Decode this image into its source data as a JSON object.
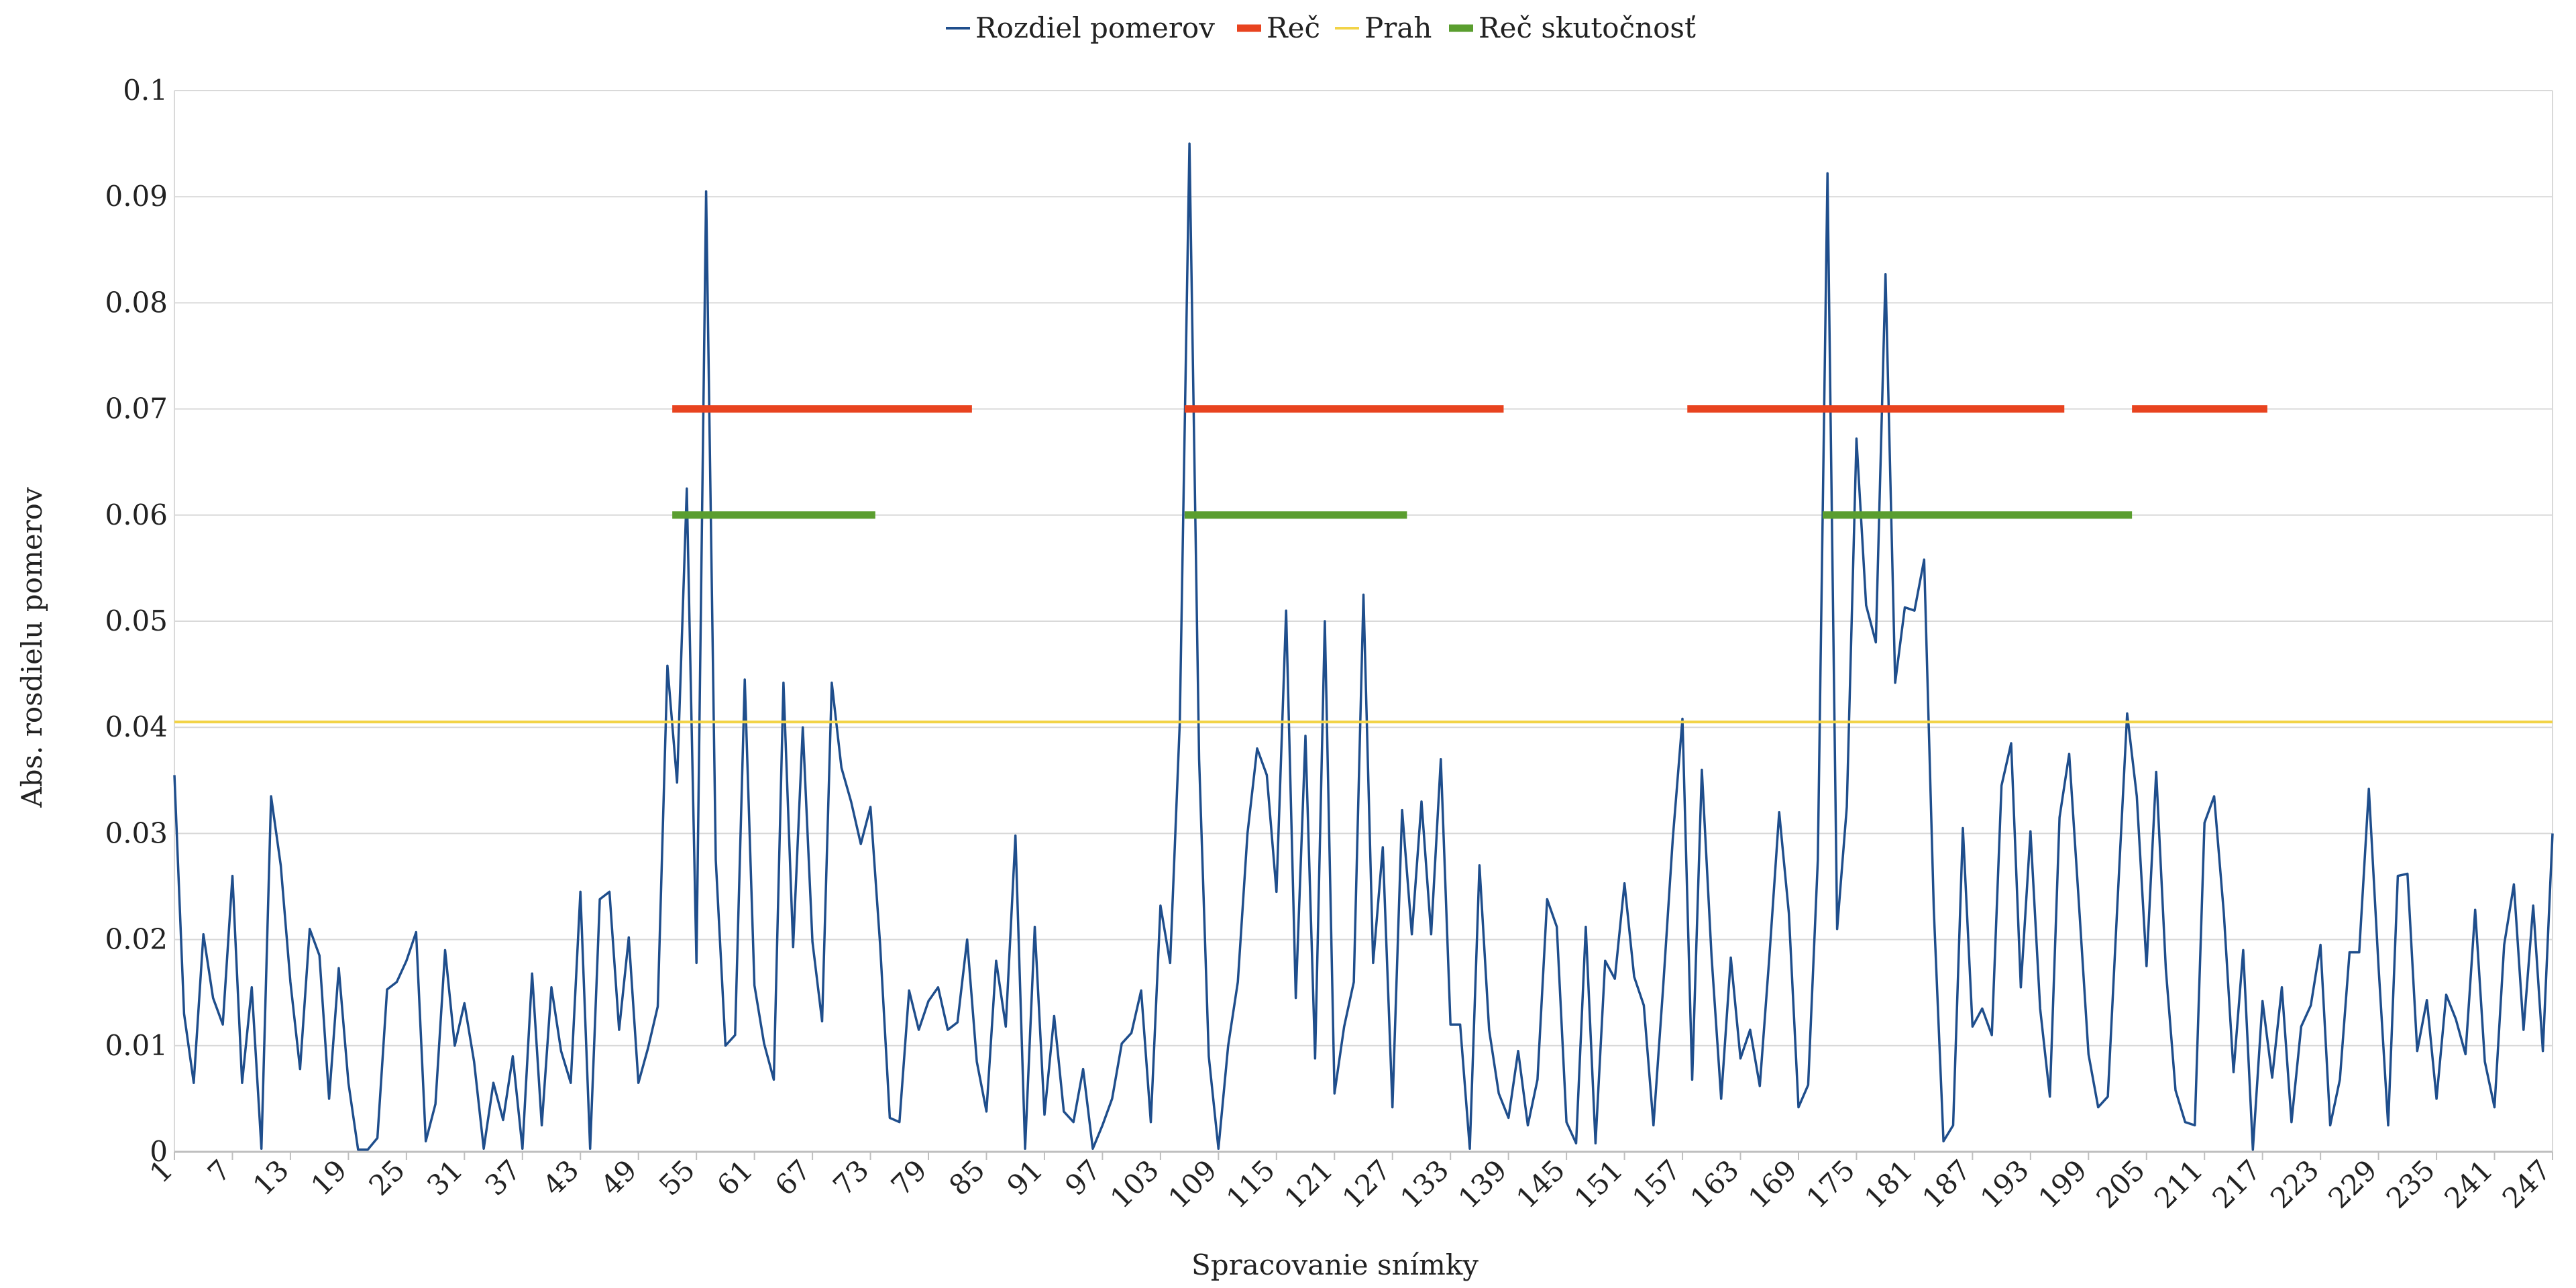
{
  "chart_data": {
    "type": "line",
    "xlabel": "Spracovanie snímky",
    "ylabel": "Abs. rosdielu pomerov",
    "ylim": [
      0,
      0.1
    ],
    "xlim": [
      1,
      247
    ],
    "yticks": [
      0,
      0.01,
      0.02,
      0.03,
      0.04,
      0.05,
      0.06,
      0.07,
      0.08,
      0.09,
      0.1
    ],
    "ytick_labels": [
      "0",
      "0.01",
      "0.02",
      "0.03",
      "0.04",
      "0.05",
      "0.06",
      "0.07",
      "0.08",
      "0.09",
      "0.1"
    ],
    "xticks": [
      1,
      7,
      13,
      19,
      25,
      31,
      37,
      43,
      49,
      55,
      61,
      67,
      73,
      79,
      85,
      91,
      97,
      103,
      109,
      115,
      121,
      127,
      133,
      139,
      145,
      151,
      157,
      163,
      169,
      175,
      181,
      187,
      193,
      199,
      205,
      211,
      217,
      223,
      229,
      235,
      241,
      247
    ],
    "grid": true,
    "legend": "top-center",
    "series": [
      {
        "name": "Rozdiel pomerov",
        "color": "#1f4e8c",
        "values": [
          0.0355,
          0.013,
          0.0065,
          0.0205,
          0.0145,
          0.012,
          0.026,
          0.0065,
          0.0155,
          0.0003,
          0.0335,
          0.027,
          0.016,
          0.0078,
          0.021,
          0.0185,
          0.005,
          0.0173,
          0.0065,
          0.0002,
          0.0002,
          0.0013,
          0.0153,
          0.016,
          0.018,
          0.0207,
          0.001,
          0.0045,
          0.019,
          0.01,
          0.014,
          0.0085,
          0.0003,
          0.0065,
          0.003,
          0.009,
          0.0003,
          0.0168,
          0.0025,
          0.0155,
          0.0095,
          0.0065,
          0.0245,
          0.0003,
          0.0238,
          0.0245,
          0.0115,
          0.0202,
          0.0065,
          0.0098,
          0.0137,
          0.0458,
          0.0348,
          0.0625,
          0.0178,
          0.0905,
          0.0275,
          0.01,
          0.011,
          0.0445,
          0.0157,
          0.0102,
          0.0068,
          0.0442,
          0.0193,
          0.04,
          0.0198,
          0.0123,
          0.0442,
          0.0362,
          0.033,
          0.029,
          0.0325,
          0.0195,
          0.0032,
          0.0028,
          0.0152,
          0.0115,
          0.0142,
          0.0155,
          0.0115,
          0.0122,
          0.02,
          0.0085,
          0.0038,
          0.018,
          0.0118,
          0.0298,
          0.0003,
          0.0212,
          0.0035,
          0.0128,
          0.0038,
          0.0028,
          0.0078,
          0.0003,
          0.0025,
          0.005,
          0.0102,
          0.0112,
          0.0152,
          0.0028,
          0.0232,
          0.0178,
          0.0405,
          0.095,
          0.037,
          0.009,
          0.0003,
          0.01,
          0.016,
          0.03,
          0.038,
          0.0355,
          0.0245,
          0.051,
          0.0145,
          0.0392,
          0.0088,
          0.05,
          0.0055,
          0.0118,
          0.016,
          0.0525,
          0.0178,
          0.0287,
          0.0042,
          0.0322,
          0.0205,
          0.033,
          0.0205,
          0.037,
          0.012,
          0.012,
          0.0003,
          0.027,
          0.0115,
          0.0055,
          0.0032,
          0.0095,
          0.0025,
          0.0068,
          0.0238,
          0.0212,
          0.0028,
          0.0008,
          0.0212,
          0.0008,
          0.018,
          0.0163,
          0.0253,
          0.0165,
          0.0138,
          0.0025,
          0.0155,
          0.0295,
          0.0408,
          0.0068,
          0.036,
          0.0185,
          0.005,
          0.0183,
          0.0088,
          0.0115,
          0.0062,
          0.0185,
          0.032,
          0.0225,
          0.0042,
          0.0063,
          0.0275,
          0.0922,
          0.021,
          0.0325,
          0.0672,
          0.0515,
          0.048,
          0.0827,
          0.0442,
          0.0513,
          0.051,
          0.0558,
          0.0228,
          0.001,
          0.0025,
          0.0305,
          0.0118,
          0.0135,
          0.011,
          0.0345,
          0.0385,
          0.0155,
          0.0302,
          0.0135,
          0.0052,
          0.0315,
          0.0375,
          0.0235,
          0.0092,
          0.0042,
          0.0052,
          0.0235,
          0.0413,
          0.0335,
          0.0175,
          0.0358,
          0.0172,
          0.0058,
          0.0028,
          0.0025,
          0.031,
          0.0335,
          0.0225,
          0.0075,
          0.019,
          0.0002,
          0.0142,
          0.007,
          0.0155,
          0.0028,
          0.0118,
          0.0138,
          0.0195,
          0.0025,
          0.0068,
          0.0188,
          0.0188,
          0.0342,
          0.0175,
          0.0025,
          0.026,
          0.0262,
          0.0095,
          0.0143,
          0.005,
          0.0148,
          0.0125,
          0.0092,
          0.0228,
          0.0085,
          0.0042,
          0.0195,
          0.0252,
          0.0115,
          0.0232,
          0.0095,
          0.03
        ]
      },
      {
        "name": "Reč",
        "color": "#e8431f",
        "y": 0.07,
        "segments": [
          [
            52.5,
            83.5
          ],
          [
            105.5,
            138.5
          ],
          [
            157.5,
            196.5
          ],
          [
            203.5,
            217.5
          ]
        ]
      },
      {
        "name": "Prah",
        "color": "#f2d347",
        "y": 0.0405
      },
      {
        "name": "Reč skutočnosť",
        "color": "#5a9e2f",
        "y": 0.06,
        "segments": [
          [
            52.5,
            73.5
          ],
          [
            105.5,
            128.5
          ],
          [
            171.5,
            203.5
          ]
        ]
      }
    ]
  }
}
